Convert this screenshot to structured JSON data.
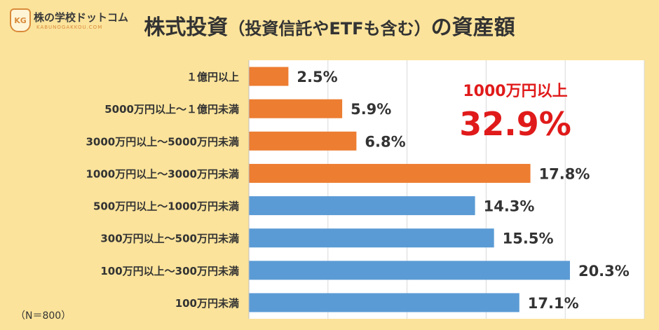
{
  "logo": {
    "badge": "KG",
    "name": "株の学校ドットコム",
    "sub": "KABUNOGAKKOU.COM"
  },
  "title": {
    "main": "株式投資",
    "sub": "（投資信託やETFも含む）",
    "tail": "の資産額"
  },
  "callout": {
    "label": "1000万円以上",
    "value": "32.9%"
  },
  "note": "（N＝800）",
  "colors": {
    "background": "#fbe39b",
    "plot_background": "#ffffff",
    "high_asset_bar": "#ed7d31",
    "low_asset_bar": "#5b9bd5",
    "callout": "#e01a1a"
  },
  "chart_data": {
    "type": "bar",
    "orientation": "horizontal",
    "categories": [
      "１億円以上",
      "5000万円以上～１億円未満",
      "3000万円以上～5000万円未満",
      "1000万円以上～3000万円未満",
      "500万円以上～1000万円未満",
      "300万円以上～500万円未満",
      "100万円以上～300万円未満",
      "100万円未満"
    ],
    "values": [
      2.5,
      5.9,
      6.8,
      17.8,
      14.3,
      15.5,
      20.3,
      17.1
    ],
    "value_labels": [
      "2.5%",
      "5.9%",
      "6.8%",
      "17.8%",
      "14.3%",
      "15.5%",
      "20.3%",
      "17.1%"
    ],
    "bar_colors": [
      "#ed7d31",
      "#ed7d31",
      "#ed7d31",
      "#ed7d31",
      "#5b9bd5",
      "#5b9bd5",
      "#5b9bd5",
      "#5b9bd5"
    ],
    "xlim": [
      0,
      25
    ],
    "unit": "%",
    "grid": true
  }
}
